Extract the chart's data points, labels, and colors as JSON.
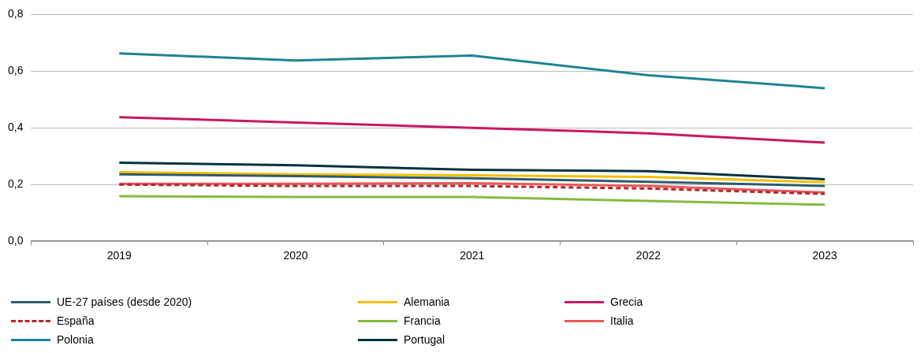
{
  "chart_data": {
    "type": "line",
    "categories": [
      "2019",
      "2020",
      "2021",
      "2022",
      "2023"
    ],
    "series": [
      {
        "name": "UE-27 países (desde 2020)",
        "color": "#2f5b6e",
        "values": [
          0.236,
          0.23,
          0.222,
          0.21,
          0.195
        ]
      },
      {
        "name": "Alemania",
        "color": "#f5be00",
        "values": [
          0.244,
          0.236,
          0.233,
          0.227,
          0.208
        ]
      },
      {
        "name": "Grecia",
        "color": "#c8185f",
        "values": [
          0.438,
          0.419,
          0.4,
          0.381,
          0.348
        ]
      },
      {
        "name": "España",
        "color": "#b5252e",
        "line_style": "dashed",
        "values": [
          0.2,
          0.195,
          0.195,
          0.186,
          0.167
        ]
      },
      {
        "name": "Francia",
        "color": "#84bb3c",
        "values": [
          0.159,
          0.156,
          0.156,
          0.142,
          0.129
        ]
      },
      {
        "name": "Italia",
        "color": "#e85a5a",
        "values": [
          0.203,
          0.203,
          0.205,
          0.195,
          0.172
        ]
      },
      {
        "name": "Polonia",
        "color": "#1f8394",
        "values": [
          0.663,
          0.638,
          0.655,
          0.586,
          0.54
        ]
      },
      {
        "name": "Portugal",
        "color": "#06323f",
        "values": [
          0.277,
          0.268,
          0.252,
          0.247,
          0.219
        ]
      }
    ],
    "ylim": [
      0,
      0.8
    ],
    "yticks": [
      {
        "value": 0,
        "label": "0,0"
      },
      {
        "value": 0.2,
        "label": "0,2"
      },
      {
        "value": 0.4,
        "label": "0,4"
      },
      {
        "value": 0.6,
        "label": "0,6"
      },
      {
        "value": 0.8,
        "label": "0,8"
      }
    ],
    "grid": "y",
    "legend": "bottom",
    "marker": "none",
    "line_style": "solid"
  }
}
